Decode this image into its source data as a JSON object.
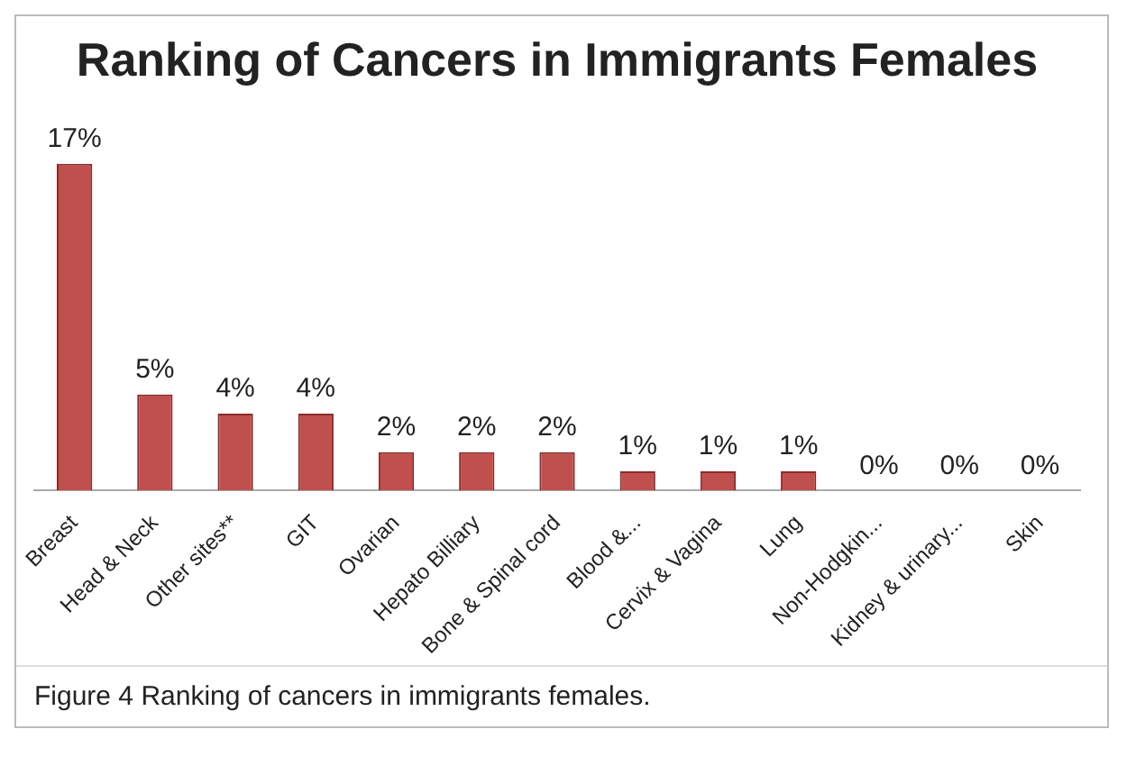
{
  "chart_data": {
    "type": "bar",
    "title": "Ranking of Cancers in Immigrants Females",
    "categories": [
      "Breast",
      "Head & Neck",
      "Other sites**",
      "GIT",
      "Ovarian",
      "Hepato Billiary",
      "Bone & Spinal cord",
      "Blood &...",
      "Cervix & Vagina",
      "Lung",
      "Non-Hodgkin...",
      "Kidney & urinary...",
      "Skin"
    ],
    "values": [
      17,
      5,
      4,
      4,
      2,
      2,
      2,
      1,
      1,
      1,
      0,
      0,
      0
    ],
    "value_labels": [
      "17%",
      "5%",
      "4%",
      "4%",
      "2%",
      "2%",
      "2%",
      "1%",
      "1%",
      "1%",
      "0%",
      "0%",
      "0%"
    ],
    "color": "#c0504d",
    "grid": false,
    "annotations": [
      "Figure 4 Ranking of cancers in immigrants females."
    ]
  }
}
